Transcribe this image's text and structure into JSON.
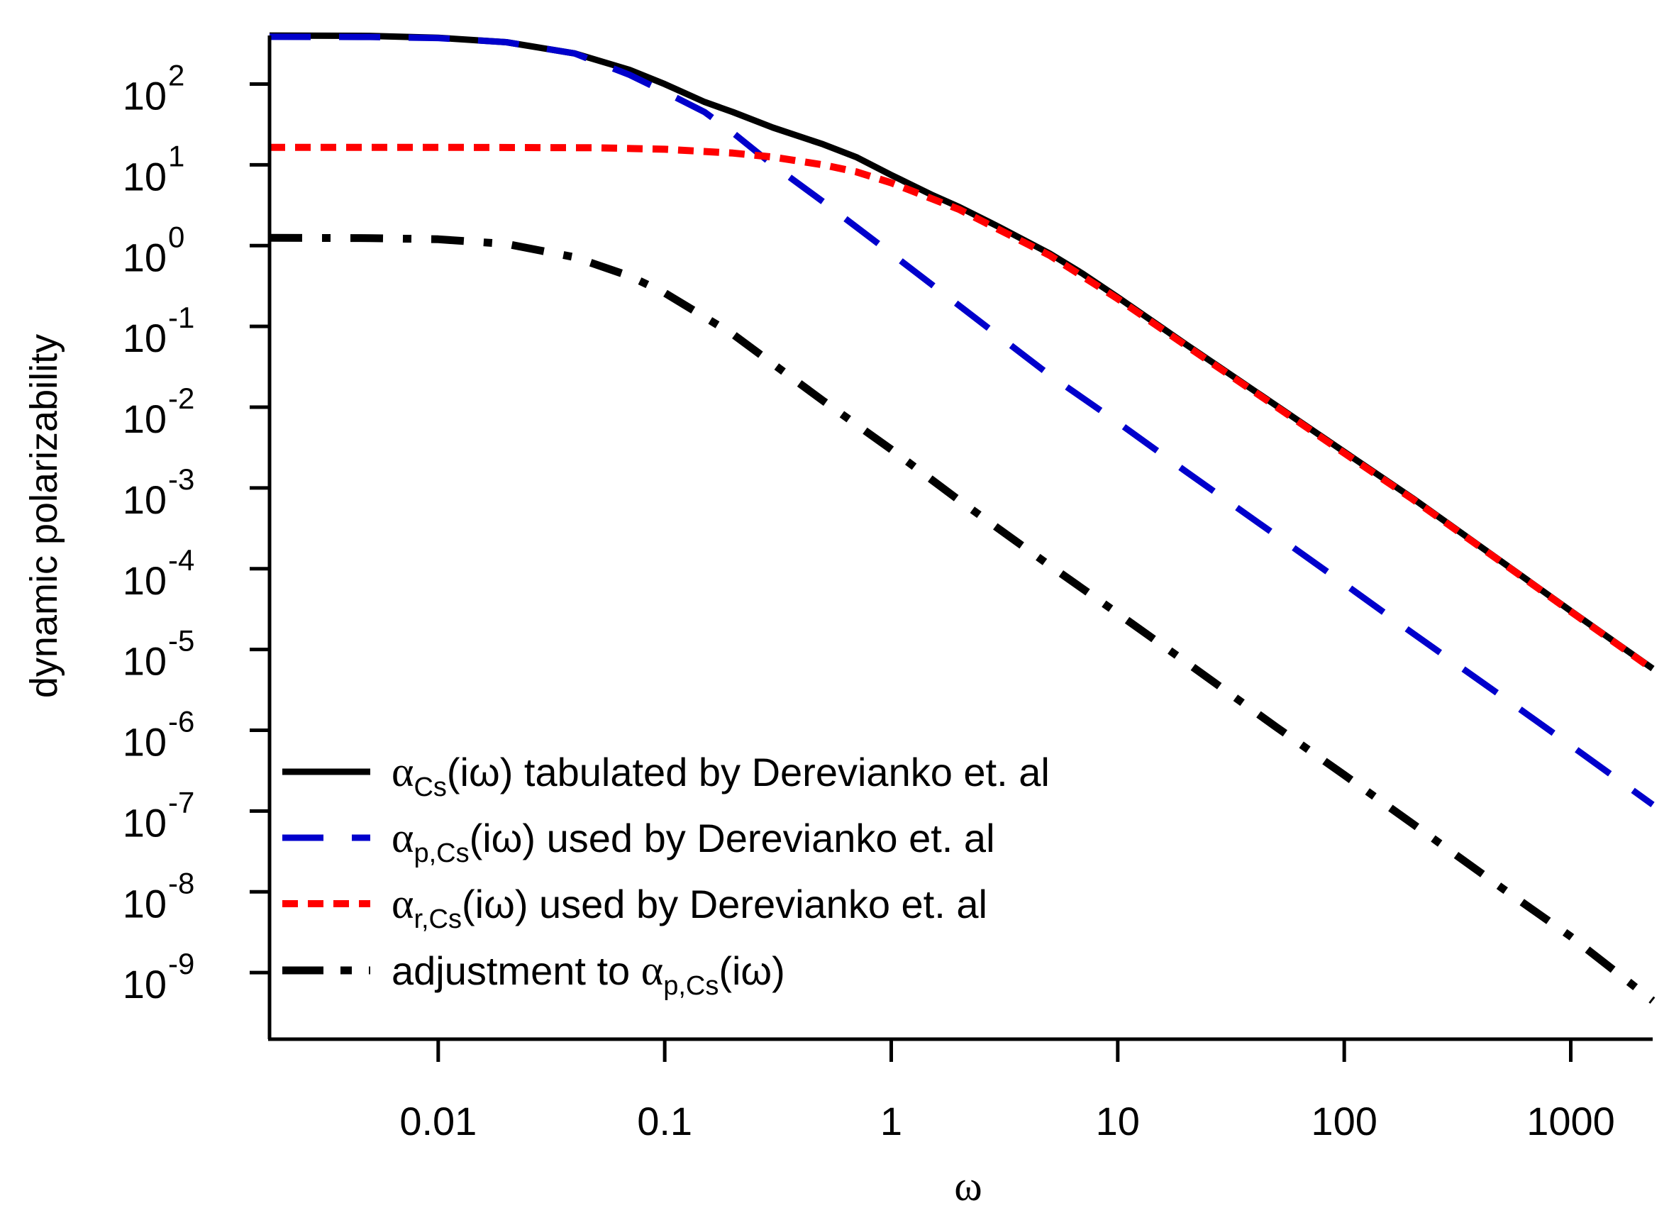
{
  "chart_data": {
    "type": "line",
    "title": "",
    "xlabel": "ω",
    "ylabel": "dynamic polarizability",
    "xscale": "log",
    "yscale": "log",
    "xlim": [
      0.0018,
      2300
    ],
    "ylim": [
      1.5e-10,
      400
    ],
    "x_ticks": [
      {
        "value": 0.01,
        "label": "0.01"
      },
      {
        "value": 0.1,
        "label": "0.1"
      },
      {
        "value": 1,
        "label": "1"
      },
      {
        "value": 10,
        "label": "10"
      },
      {
        "value": 100,
        "label": "100"
      },
      {
        "value": 1000,
        "label": "1000"
      }
    ],
    "y_ticks": [
      {
        "value": 100,
        "base": "10",
        "exp": "2"
      },
      {
        "value": 10,
        "base": "10",
        "exp": "1"
      },
      {
        "value": 1,
        "base": "10",
        "exp": "0"
      },
      {
        "value": 0.1,
        "base": "10",
        "exp": "-1"
      },
      {
        "value": 0.01,
        "base": "10",
        "exp": "-2"
      },
      {
        "value": 0.001,
        "base": "10",
        "exp": "-3"
      },
      {
        "value": 0.0001,
        "base": "10",
        "exp": "-4"
      },
      {
        "value": 1e-05,
        "base": "10",
        "exp": "-5"
      },
      {
        "value": 1e-06,
        "base": "10",
        "exp": "-6"
      },
      {
        "value": 1e-07,
        "base": "10",
        "exp": "-7"
      },
      {
        "value": 1e-08,
        "base": "10",
        "exp": "-8"
      },
      {
        "value": 1e-09,
        "base": "10",
        "exp": "-9"
      }
    ],
    "legend_position": "bottom-left",
    "series": [
      {
        "name": "αCs(iω) tabulated by Derevianko et. al",
        "legend": {
          "alpha": "α",
          "sub": "Cs",
          "rest": "(iω) tabulated by Derevianko et. al"
        },
        "color": "#000000",
        "style": "solid",
        "x": [
          0.0018,
          0.005,
          0.01,
          0.02,
          0.04,
          0.07,
          0.1,
          0.15,
          0.2,
          0.3,
          0.5,
          0.7,
          1,
          1.5,
          2,
          3,
          5,
          7,
          10,
          20,
          50,
          100,
          200,
          500,
          1000,
          2300
        ],
        "y": [
          399,
          395,
          375,
          330,
          240,
          150,
          100,
          60,
          45,
          29,
          18,
          12.5,
          7.5,
          4.3,
          3.0,
          1.7,
          0.8,
          0.45,
          0.23,
          0.06,
          0.0105,
          0.0028,
          0.00075,
          0.00012,
          3e-05,
          5.8e-06
        ]
      },
      {
        "name": "αp,Cs(iω) used by Derevianko et. al",
        "legend": {
          "alpha": "α",
          "sub": "p,Cs",
          "rest": "(iω) used by Derevianko et. al"
        },
        "color": "#0000cc",
        "style": "dashed",
        "x": [
          0.0018,
          0.005,
          0.01,
          0.02,
          0.04,
          0.07,
          0.1,
          0.15,
          0.2,
          0.3,
          0.5,
          1,
          2,
          5,
          10,
          20,
          50,
          100,
          200,
          500,
          1000,
          2300
        ],
        "y": [
          385,
          383,
          372,
          330,
          240,
          130,
          80,
          45,
          25,
          10,
          3.5,
          0.8,
          0.18,
          0.025,
          0.0065,
          0.0016,
          0.00026,
          6.5e-05,
          1.6e-05,
          2.6e-06,
          6.5e-07,
          1.2e-07
        ]
      },
      {
        "name": "αr,Cs(iω) used by Derevianko et. al",
        "legend": {
          "alpha": "α",
          "sub": "r,Cs",
          "rest": "(iω) used by Derevianko et. al"
        },
        "color": "#ff0000",
        "style": "dotted",
        "x": [
          0.0018,
          0.01,
          0.05,
          0.1,
          0.2,
          0.3,
          0.5,
          0.7,
          1,
          2,
          5,
          10,
          20,
          50,
          100,
          200,
          500,
          1000,
          2300
        ],
        "y": [
          16.5,
          16.5,
          16.3,
          15.6,
          14.0,
          12.5,
          10.0,
          8.2,
          6.0,
          2.8,
          0.76,
          0.22,
          0.058,
          0.0102,
          0.0027,
          0.00073,
          0.000118,
          2.95e-05,
          5.7e-06
        ]
      },
      {
        "name": "adjustment to αp,Cs(iω)",
        "legend": {
          "prefix": "adjustment to ",
          "alpha": "α",
          "sub": "p,Cs",
          "rest": "(iω)"
        },
        "color": "#000000",
        "style": "dashdot",
        "x": [
          0.0018,
          0.005,
          0.01,
          0.02,
          0.04,
          0.07,
          0.1,
          0.2,
          0.5,
          1,
          2,
          5,
          10,
          20,
          50,
          100,
          200,
          500,
          1000,
          2300
        ],
        "y": [
          1.25,
          1.24,
          1.2,
          1.05,
          0.72,
          0.42,
          0.26,
          0.08,
          0.012,
          0.003,
          0.0007,
          0.00011,
          2.8e-05,
          7e-06,
          1.1e-06,
          2.8e-07,
          7e-08,
          1.1e-08,
          2.8e-09,
          4.5e-10
        ]
      }
    ]
  }
}
